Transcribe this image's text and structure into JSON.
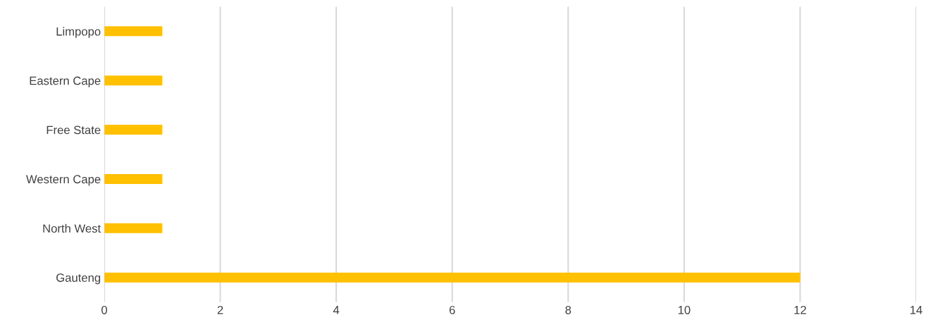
{
  "chart_data": {
    "type": "bar",
    "orientation": "horizontal",
    "categories": [
      "Limpopo",
      "Eastern Cape",
      "Free State",
      "Western Cape",
      "North West",
      "Gauteng"
    ],
    "values": [
      1,
      1,
      1,
      1,
      1,
      12
    ],
    "color": "#ffc000",
    "xlim": [
      0,
      14
    ],
    "xticks": [
      0,
      2,
      4,
      6,
      8,
      10,
      12,
      14
    ],
    "grid": "x"
  }
}
